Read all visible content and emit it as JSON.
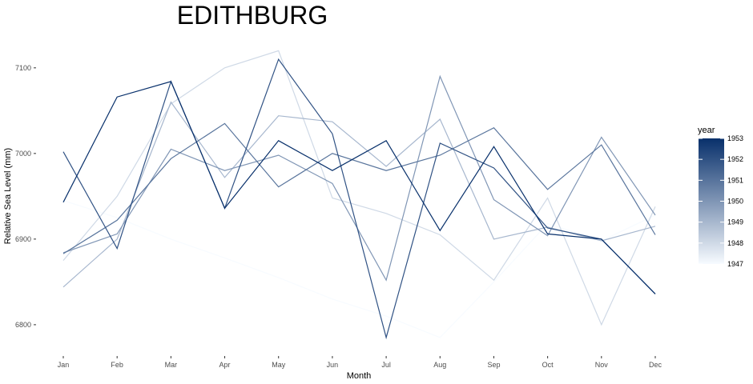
{
  "chart_data": {
    "type": "line",
    "title": "EDITHBURG",
    "xlabel": "Month",
    "ylabel": "Relative Sea Level (mm)",
    "categories": [
      "Jan",
      "Feb",
      "Mar",
      "Apr",
      "May",
      "Jun",
      "Jul",
      "Aug",
      "Sep",
      "Oct",
      "Nov",
      "Dec"
    ],
    "ylim": [
      6770,
      7140
    ],
    "yticks": [
      6800,
      6900,
      7000,
      7100
    ],
    "grid": false,
    "legend": {
      "title": "year",
      "position": "right",
      "type": "colorbar",
      "min": 1947,
      "max": 1953,
      "labels": [
        "1953",
        "1952",
        "1951",
        "1950",
        "1949",
        "1948",
        "1947"
      ],
      "color_low": "#f7fbff",
      "color_high": "#08306b"
    },
    "series": [
      {
        "year": 1947,
        "values": [
          6945,
          6925,
          6900,
          6878,
          6855,
          6830,
          6810,
          6785,
          6850,
          6918,
          6898,
          6928
        ]
      },
      {
        "year": 1948,
        "values": [
          6875,
          6950,
          7058,
          7100,
          7120,
          6948,
          6930,
          6905,
          6852,
          6948,
          6800,
          6938
        ]
      },
      {
        "year": 1949,
        "values": [
          6844,
          6900,
          7060,
          6972,
          7044,
          7037,
          6985,
          7040,
          6900,
          6914,
          6898,
          6915
        ]
      },
      {
        "year": 1950,
        "values": [
          6884,
          6906,
          7005,
          6980,
          6998,
          6965,
          6852,
          7090,
          6946,
          6904,
          7019,
          6928
        ]
      },
      {
        "year": 1951,
        "values": [
          6883,
          6922,
          6994,
          7035,
          6961,
          7000,
          6980,
          6998,
          7030,
          6958,
          7010,
          6905
        ]
      },
      {
        "year": 1952,
        "values": [
          7002,
          6889,
          7084,
          6936,
          7110,
          7023,
          6785,
          7012,
          6983,
          6913,
          6900,
          6836
        ]
      },
      {
        "year": 1953,
        "values": [
          6943,
          7066,
          7084,
          6936,
          7015,
          6980,
          7015,
          6910,
          7008,
          6906,
          6900,
          6836
        ]
      }
    ]
  }
}
